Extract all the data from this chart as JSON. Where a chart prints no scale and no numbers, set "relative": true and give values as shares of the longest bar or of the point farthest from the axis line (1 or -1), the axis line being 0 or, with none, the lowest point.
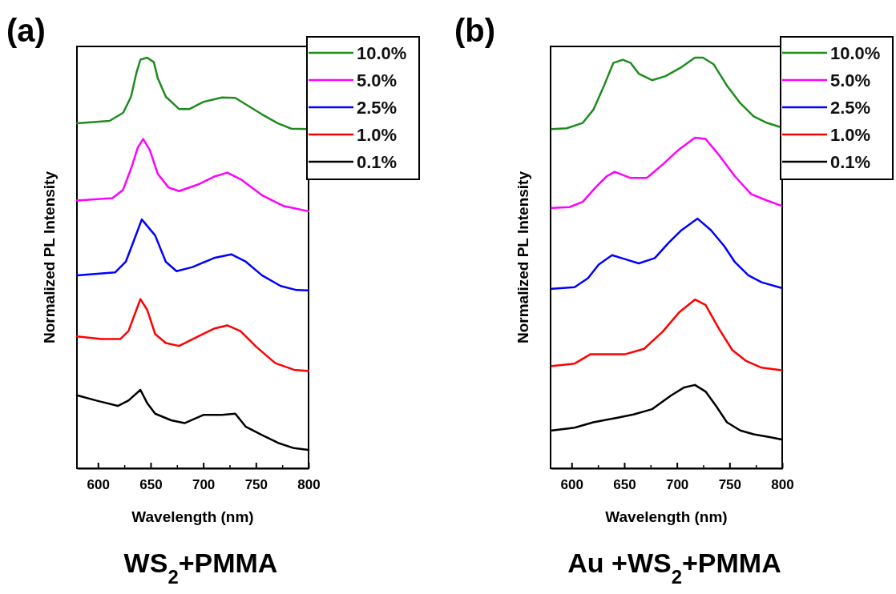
{
  "chart_data": [
    {
      "type": "line",
      "title": "WS$_{2}$+PMMA",
      "xlabel": "Wavelength (nm)",
      "ylabel": "Normalized PL Intensity",
      "annotations": [
        "(a)"
      ],
      "relative": true,
      "legend": "top right",
      "xlim": [
        580,
        800
      ],
      "xticks": [
        600,
        {
          "value": 625,
          "label": null
        },
        650,
        {
          "value": 675,
          "label": null
        },
        700,
        {
          "value": 725,
          "label": null
        },
        750,
        {
          "value": 775,
          "label": null
        },
        800
      ],
      "series": [
        {
          "name": "10.0%",
          "color": "#1e8c1e",
          "x": [
            580,
            611,
            624,
            631.4,
            636.5,
            640.3,
            646.7,
            653,
            656.8,
            664.4,
            677,
            687,
            700,
            717.7,
            730.4,
            743,
            755.7,
            771,
            783.6,
            798.9
          ],
          "values": [
            0.84,
            0.846,
            0.866,
            0.905,
            0.963,
            0.995,
            1.0,
            0.989,
            0.95,
            0.905,
            0.875,
            0.875,
            0.892,
            0.903,
            0.902,
            0.882,
            0.862,
            0.84,
            0.827,
            0.826
          ]
        },
        {
          "name": "5.0%",
          "color": "#ff00ff",
          "x": [
            580,
            613.7,
            623.8,
            631.4,
            637.8,
            642.9,
            649.2,
            656.8,
            667,
            677,
            694.9,
            710,
            722.8,
            735.4,
            755.7,
            776,
            800
          ],
          "values": [
            0.652,
            0.658,
            0.678,
            0.73,
            0.781,
            0.802,
            0.775,
            0.717,
            0.684,
            0.675,
            0.691,
            0.71,
            0.72,
            0.704,
            0.665,
            0.639,
            0.626
          ]
        },
        {
          "name": "2.5%",
          "color": "#0000ff",
          "x": [
            580,
            616.2,
            626.4,
            634,
            641.6,
            654.3,
            664.4,
            674.6,
            689.8,
            710.1,
            726.6,
            740.5,
            755.7,
            773.5,
            788.7,
            800
          ],
          "values": [
            0.47,
            0.477,
            0.503,
            0.554,
            0.606,
            0.567,
            0.503,
            0.48,
            0.49,
            0.512,
            0.521,
            0.503,
            0.47,
            0.444,
            0.434,
            0.433
          ]
        },
        {
          "name": "1.0%",
          "color": "#ff0000",
          "x": [
            580,
            603.5,
            621.3,
            628.9,
            636.5,
            640.3,
            646.7,
            654.3,
            664.4,
            677,
            694.9,
            710.1,
            722.8,
            735.4,
            750.7,
            768.4,
            786.2,
            800
          ],
          "values": [
            0.321,
            0.315,
            0.315,
            0.334,
            0.386,
            0.412,
            0.386,
            0.327,
            0.305,
            0.298,
            0.321,
            0.34,
            0.348,
            0.334,
            0.295,
            0.256,
            0.24,
            0.237
          ]
        },
        {
          "name": "0.1%",
          "color": "#000000",
          "x": [
            580,
            598.5,
            618.8,
            628.9,
            640.3,
            646.7,
            654.3,
            669.5,
            682.2,
            700,
            717.7,
            730.4,
            740.5,
            755.7,
            771,
            786.2,
            800
          ],
          "values": [
            0.178,
            0.165,
            0.152,
            0.165,
            0.191,
            0.159,
            0.133,
            0.117,
            0.11,
            0.13,
            0.13,
            0.133,
            0.101,
            0.081,
            0.062,
            0.049,
            0.045
          ]
        }
      ]
    },
    {
      "type": "line",
      "title": "Au +WS$_{2}$+PMMA",
      "xlabel": "Wavelength (nm)",
      "ylabel": "Normalized PL Intensity",
      "annotations": [
        "(b)"
      ],
      "relative": true,
      "legend": "top right",
      "xlim": [
        580,
        800
      ],
      "xticks": [
        600,
        {
          "value": 625,
          "label": null
        },
        650,
        {
          "value": 675,
          "label": null
        },
        700,
        {
          "value": 725,
          "label": null
        },
        750,
        {
          "value": 775,
          "label": null
        },
        800
      ],
      "series": [
        {
          "name": "10.0%",
          "color": "#1e8c1e",
          "x": [
            581.3,
            595.2,
            610.5,
            620.6,
            630.8,
            639.6,
            648.5,
            656.1,
            663.8,
            676.4,
            689.1,
            704.4,
            717.1,
            724.7,
            734.8,
            747.5,
            760.2,
            772.9,
            785.6,
            798.3
          ],
          "values": [
            0.826,
            0.828,
            0.841,
            0.873,
            0.932,
            0.987,
            0.995,
            0.987,
            0.961,
            0.945,
            0.955,
            0.977,
            1.0,
            1.0,
            0.984,
            0.932,
            0.889,
            0.857,
            0.841,
            0.831
          ]
        },
        {
          "name": "5.0%",
          "color": "#ff00ff",
          "x": [
            581.3,
            597.8,
            610.5,
            623.1,
            633.3,
            640.9,
            656.1,
            671.4,
            686.6,
            701.8,
            717.1,
            727.2,
            739.9,
            755.1,
            770.4,
            785.6,
            799.5
          ],
          "values": [
            0.634,
            0.636,
            0.649,
            0.685,
            0.711,
            0.722,
            0.707,
            0.707,
            0.74,
            0.776,
            0.805,
            0.802,
            0.763,
            0.711,
            0.668,
            0.652,
            0.639
          ]
        },
        {
          "name": "2.5%",
          "color": "#0000ff",
          "x": [
            581.3,
            602.8,
            615.5,
            625.7,
            638.4,
            651.1,
            663.8,
            679,
            691.7,
            704.4,
            719.6,
            732.3,
            745,
            755.1,
            767.8,
            780.5,
            799.5
          ],
          "values": [
            0.437,
            0.441,
            0.463,
            0.496,
            0.519,
            0.509,
            0.499,
            0.512,
            0.548,
            0.58,
            0.608,
            0.58,
            0.541,
            0.502,
            0.47,
            0.453,
            0.439
          ]
        },
        {
          "name": "1.0%",
          "color": "#ff0000",
          "x": [
            581.3,
            602.8,
            618.1,
            633.3,
            651.1,
            668.8,
            686.6,
            701.8,
            717.1,
            727.2,
            739.9,
            752.6,
            765.3,
            780.5,
            799.5
          ],
          "values": [
            0.249,
            0.255,
            0.278,
            0.278,
            0.278,
            0.291,
            0.333,
            0.379,
            0.411,
            0.398,
            0.34,
            0.288,
            0.262,
            0.245,
            0.239
          ]
        },
        {
          "name": "0.1%",
          "color": "#000000",
          "x": [
            581.3,
            602.8,
            620.6,
            640.9,
            658.7,
            676.4,
            694.2,
            706.9,
            717.1,
            727.2,
            737.4,
            747.5,
            760.2,
            772.9,
            788.1,
            799.5
          ],
          "values": [
            0.092,
            0.099,
            0.112,
            0.122,
            0.131,
            0.144,
            0.177,
            0.197,
            0.203,
            0.187,
            0.151,
            0.112,
            0.092,
            0.083,
            0.076,
            0.07
          ]
        }
      ]
    }
  ]
}
